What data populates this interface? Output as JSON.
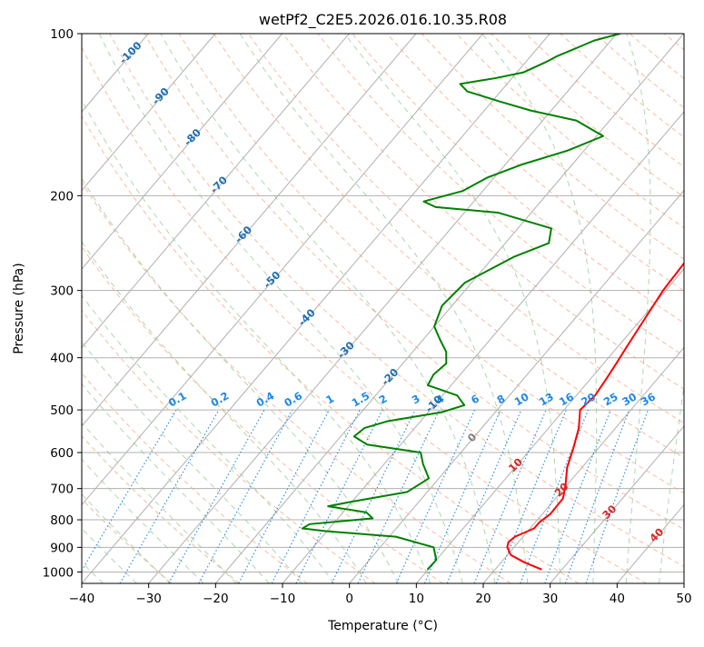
{
  "chart_data": {
    "type": "skew-t",
    "title": "wetPf2_C2E5.2026.016.10.35.R08",
    "xlabel": "Temperature (°C)",
    "ylabel": "Pressure (hPa)",
    "xlim": [
      -40,
      50
    ],
    "ylim_hpa": [
      1050,
      100
    ],
    "x_ticks": [
      "−40",
      "−30",
      "−20",
      "−10",
      "0",
      "10",
      "20",
      "30",
      "40",
      "50"
    ],
    "x_tick_values": [
      -40,
      -30,
      -20,
      -10,
      0,
      10,
      20,
      30,
      40,
      50
    ],
    "y_ticks": [
      "100",
      "200",
      "300",
      "400",
      "500",
      "600",
      "700",
      "800",
      "900",
      "1000"
    ],
    "y_tick_values": [
      100,
      200,
      300,
      400,
      500,
      600,
      700,
      800,
      900,
      1000
    ],
    "skew_deg_per_log_decade": 68.5,
    "temperature_profile": {
      "name": "Temperature",
      "color": "#ff0000",
      "points": [
        [
          990,
          27.0
        ],
        [
          960,
          23.5
        ],
        [
          930,
          20.5
        ],
        [
          900,
          19.0
        ],
        [
          880,
          18.5
        ],
        [
          860,
          18.8
        ],
        [
          830,
          20.6
        ],
        [
          810,
          20.6
        ],
        [
          780,
          21.2
        ],
        [
          730,
          21.1
        ],
        [
          690,
          19.8
        ],
        [
          640,
          17.8
        ],
        [
          590,
          16.3
        ],
        [
          540,
          14.5
        ],
        [
          500,
          12.4
        ],
        [
          470,
          12.8
        ],
        [
          440,
          12.4
        ],
        [
          410,
          11.9
        ],
        [
          380,
          11.3
        ],
        [
          340,
          10.5
        ],
        [
          300,
          9.6
        ],
        [
          260,
          9.2
        ],
        [
          245,
          9.5
        ],
        [
          225,
          11.2
        ],
        [
          210,
          12.2
        ],
        [
          195,
          12.0
        ],
        [
          180,
          11.0
        ],
        [
          165,
          10.2
        ],
        [
          150,
          10.5
        ],
        [
          140,
          11.5
        ],
        [
          130,
          13.2
        ],
        [
          120,
          15.6
        ],
        [
          110,
          18.6
        ],
        [
          100,
          22.5
        ]
      ]
    },
    "dewpoint_profile": {
      "name": "Dewpoint",
      "color": "#008000",
      "points": [
        [
          990,
          9.9
        ],
        [
          950,
          10.0
        ],
        [
          900,
          8.0
        ],
        [
          860,
          1.0
        ],
        [
          840,
          -10.0
        ],
        [
          830,
          -14.0
        ],
        [
          815,
          -13.5
        ],
        [
          795,
          -4.8
        ],
        [
          775,
          -6.5
        ],
        [
          755,
          -13.0
        ],
        [
          740,
          -10.0
        ],
        [
          710,
          -3.0
        ],
        [
          670,
          -1.5
        ],
        [
          630,
          -4.2
        ],
        [
          600,
          -6.0
        ],
        [
          580,
          -15.0
        ],
        [
          560,
          -18.0
        ],
        [
          540,
          -17.5
        ],
        [
          525,
          -15.0
        ],
        [
          505,
          -8.0
        ],
        [
          490,
          -5.5
        ],
        [
          470,
          -7.8
        ],
        [
          450,
          -13.5
        ],
        [
          430,
          -14.0
        ],
        [
          410,
          -13.5
        ],
        [
          390,
          -15.0
        ],
        [
          370,
          -17.5
        ],
        [
          350,
          -20.0
        ],
        [
          320,
          -21.5
        ],
        [
          290,
          -21.0
        ],
        [
          260,
          -17.0
        ],
        [
          245,
          -13.5
        ],
        [
          230,
          -15.0
        ],
        [
          215,
          -25.0
        ],
        [
          210,
          -35.0
        ],
        [
          205,
          -37.5
        ],
        [
          196,
          -33.0
        ],
        [
          185,
          -31.0
        ],
        [
          175,
          -27.5
        ],
        [
          165,
          -22.5
        ],
        [
          155,
          -19.0
        ],
        [
          145,
          -25.0
        ],
        [
          139,
          -33.0
        ],
        [
          134,
          -38.5
        ],
        [
          128,
          -45.0
        ],
        [
          124,
          -47.0
        ],
        [
          122,
          -44.0
        ],
        [
          121,
          -42.5
        ],
        [
          118,
          -39.0
        ],
        [
          113,
          -37.0
        ],
        [
          110,
          -36.0
        ],
        [
          106,
          -34.0
        ],
        [
          103,
          -32.5
        ],
        [
          100,
          -29.5
        ]
      ]
    },
    "mixing_ratio_labels": [
      "0.1",
      "0.2",
      "0.4",
      "0.6",
      "1",
      "1.5",
      "2",
      "3",
      "4",
      "6",
      "8",
      "10",
      "13",
      "16",
      "20",
      "25",
      "30",
      "36"
    ],
    "mixing_ratio_values": [
      0.1,
      0.2,
      0.4,
      0.6,
      1,
      1.5,
      2,
      3,
      4,
      6,
      8,
      10,
      13,
      16,
      20,
      25,
      30,
      36
    ],
    "dry_adiabat_labels": [
      "-100",
      "-90",
      "-80",
      "-70",
      "-60",
      "-50",
      "-40",
      "-30",
      "-20",
      "-10"
    ],
    "dry_adiabat_values_c": [
      -100,
      -90,
      -80,
      -70,
      -60,
      -50,
      -40,
      -30,
      -20,
      -10
    ],
    "moist_adiabat_labels": [
      "0",
      "10",
      "20",
      "30",
      "40"
    ],
    "moist_adiabat_values_c": [
      0,
      10,
      20,
      30,
      40
    ],
    "colors": {
      "temperature": "#ff0000",
      "dewpoint": "#008000",
      "isotherm": "#b0b0b0",
      "isobar": "#b0b0b0",
      "dry_adiabat": "#f4a582",
      "moist_adiabat": "#8cc68c",
      "mixing_ratio": "#1e88e5",
      "dry_label": "#1f6fb0",
      "moist_label": "#d62728",
      "zero_label": "#7f7f7f"
    }
  }
}
